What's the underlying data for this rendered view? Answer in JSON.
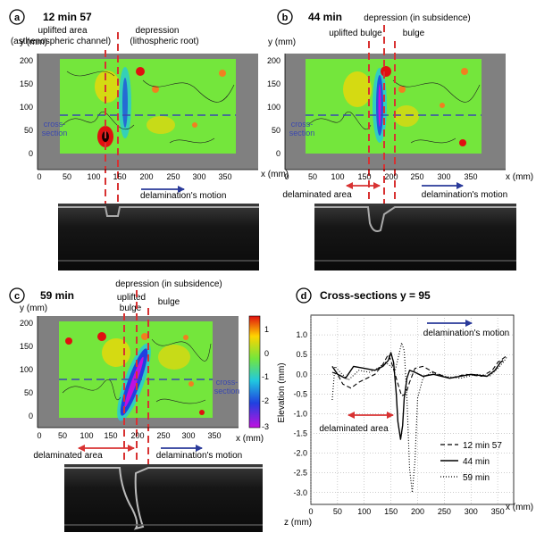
{
  "panels": {
    "a": {
      "letter": "a",
      "time": "12 min 57",
      "ann_left_1": "uplifted area",
      "ann_left_2": "(asthenospheric channel)",
      "ann_right_1": "depression",
      "ann_right_2": "(lithospheric root)",
      "cross_section_1": "cross-",
      "cross_section_2": "section",
      "motion": "delamination's motion",
      "y_label": "y (mm)",
      "x_label": "x (mm)"
    },
    "b": {
      "letter": "b",
      "time": "44 min",
      "ann_top": "depression (in subsidence)",
      "ann_left": "uplifted bulge",
      "ann_right": "bulge",
      "cross_section_1": "cross-",
      "cross_section_2": "section",
      "delaminated": "delaminated area",
      "motion": "delamination's motion",
      "y_label": "y (mm)",
      "x_label": "x (mm)"
    },
    "c": {
      "letter": "c",
      "time": "59 min",
      "ann_top": "depression (in subsidence)",
      "ann_left_1": "uplifted",
      "ann_left_2": "bulge",
      "ann_right": "bulge",
      "cross_section_1": "cross-",
      "cross_section_2": "section",
      "delaminated": "delaminated area",
      "motion": "delamination's motion",
      "y_label": "y (mm)",
      "x_label": "x (mm)",
      "colorbar_ticks": [
        "1",
        "0",
        "-1",
        "-2",
        "-3"
      ]
    },
    "d": {
      "letter": "d",
      "title": "Cross-sections y = 95",
      "motion": "delamination's motion",
      "delaminated": "delaminated area",
      "z_label": "z (mm)"
    }
  },
  "map_axes": {
    "x_ticks": [
      "0",
      "50",
      "100",
      "150",
      "200",
      "250",
      "300",
      "350"
    ],
    "y_ticks": [
      "0",
      "50",
      "100",
      "150",
      "200"
    ]
  },
  "colors": {
    "panel_bg": "#808080",
    "field": "#74e63c",
    "marker_red": "#dd2222",
    "arrow_red": "#d83232",
    "arrow_blue": "#2a3a9a",
    "cross_blue": "#3a48b0"
  },
  "chart_data": {
    "type": "line",
    "title": "Cross-sections y = 95",
    "xlabel": "x (mm)",
    "ylabel": "Elevation (mm)",
    "xlim": [
      0,
      380
    ],
    "ylim": [
      -3.3,
      1.5
    ],
    "x_ticks": [
      0,
      50,
      100,
      150,
      200,
      250,
      300,
      350
    ],
    "y_ticks": [
      1.0,
      0.5,
      0.0,
      -0.5,
      -1.0,
      -1.5,
      -2.0,
      -2.5,
      -3.0
    ],
    "legend_position": "bottom-right",
    "series": [
      {
        "name": "12 min 57",
        "style": "dashed",
        "x": [
          40,
          50,
          60,
          75,
          90,
          105,
          120,
          135,
          145,
          150,
          160,
          170,
          178,
          185,
          195,
          210,
          230,
          260,
          290,
          320,
          340,
          350,
          360,
          365
        ],
        "y": [
          0.05,
          0.0,
          -0.25,
          -0.35,
          -0.2,
          -0.1,
          0.0,
          0.25,
          0.5,
          0.35,
          -0.1,
          -0.55,
          -0.5,
          -0.2,
          0.15,
          0.2,
          0.05,
          -0.1,
          0.0,
          -0.05,
          0.1,
          0.3,
          0.4,
          0.45
        ]
      },
      {
        "name": "44 min",
        "style": "solid",
        "x": [
          40,
          50,
          65,
          80,
          100,
          120,
          135,
          145,
          150,
          155,
          160,
          163,
          168,
          172,
          175,
          180,
          185,
          195,
          210,
          230,
          260,
          300,
          330,
          345,
          355,
          360
        ],
        "y": [
          0.2,
          0.0,
          -0.1,
          0.2,
          0.15,
          0.1,
          0.2,
          0.35,
          0.55,
          0.3,
          -0.5,
          -1.2,
          -1.65,
          -1.3,
          -0.6,
          -0.1,
          0.1,
          0.05,
          -0.05,
          0.0,
          -0.1,
          0.0,
          -0.05,
          0.1,
          0.3,
          0.35
        ]
      },
      {
        "name": "59 min",
        "style": "dotted",
        "x": [
          40,
          45,
          55,
          70,
          90,
          110,
          125,
          140,
          150,
          158,
          165,
          170,
          175,
          180,
          185,
          190,
          195,
          200,
          210,
          225,
          250,
          280,
          310,
          335,
          350,
          360,
          368
        ],
        "y": [
          -0.65,
          0.2,
          0.05,
          -0.15,
          0.1,
          0.05,
          0.15,
          0.3,
          0.2,
          0.1,
          0.5,
          0.8,
          0.6,
          -0.6,
          -2.4,
          -3.0,
          -2.2,
          -0.6,
          -0.1,
          0.05,
          -0.05,
          -0.1,
          0.0,
          -0.05,
          0.15,
          0.3,
          0.45
        ]
      }
    ]
  }
}
